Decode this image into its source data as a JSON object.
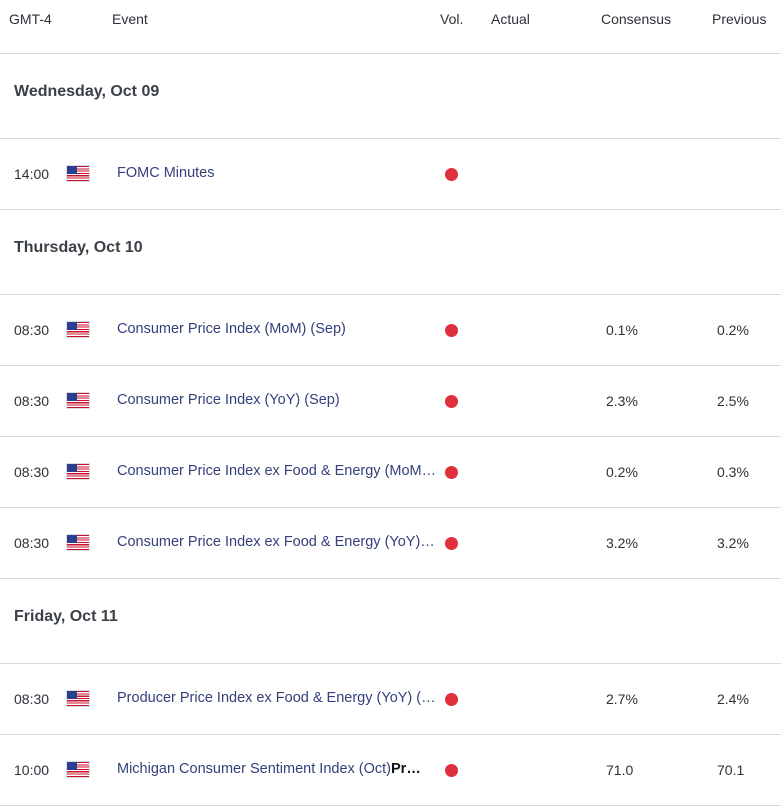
{
  "header": {
    "timezone": "GMT-4",
    "event": "Event",
    "vol": "Vol.",
    "actual": "Actual",
    "consensus": "Consensus",
    "previous": "Previous"
  },
  "days": [
    {
      "label": "Wednesday, Oct 09",
      "events": [
        {
          "time": "14:00",
          "country_icon": "us-flag-icon",
          "name": "FOMC Minutes",
          "volatility": "high",
          "actual": "",
          "consensus": "",
          "previous": ""
        }
      ]
    },
    {
      "label": "Thursday, Oct 10",
      "events": [
        {
          "time": "08:30",
          "country_icon": "us-flag-icon",
          "name": "Consumer Price Index (MoM) (Sep)",
          "volatility": "high",
          "actual": "",
          "consensus": "0.1%",
          "previous": "0.2%"
        },
        {
          "time": "08:30",
          "country_icon": "us-flag-icon",
          "name": "Consumer Price Index (YoY) (Sep)",
          "volatility": "high",
          "actual": "",
          "consensus": "2.3%",
          "previous": "2.5%"
        },
        {
          "time": "08:30",
          "country_icon": "us-flag-icon",
          "name": "Consumer Price Index ex Food & Energy (MoM…",
          "volatility": "high",
          "actual": "",
          "consensus": "0.2%",
          "previous": "0.3%"
        },
        {
          "time": "08:30",
          "country_icon": "us-flag-icon",
          "name": "Consumer Price Index ex Food & Energy (YoY)…",
          "volatility": "high",
          "actual": "",
          "consensus": "3.2%",
          "previous": "3.2%"
        }
      ]
    },
    {
      "label": "Friday, Oct 11",
      "events": [
        {
          "time": "08:30",
          "country_icon": "us-flag-icon",
          "name": "Producer Price Index ex Food & Energy (YoY) (…",
          "volatility": "high",
          "actual": "",
          "consensus": "2.7%",
          "previous": "2.4%"
        },
        {
          "time": "10:00",
          "country_icon": "us-flag-icon",
          "name": "Michigan Consumer Sentiment Index (Oct)",
          "name_suffix": "Pr…",
          "volatility": "high",
          "actual": "",
          "consensus": "71.0",
          "previous": "70.1"
        }
      ]
    }
  ],
  "colors": {
    "volatility_high": "#e0303d",
    "event_text": "#34407a",
    "divider": "#d9dbe0"
  }
}
